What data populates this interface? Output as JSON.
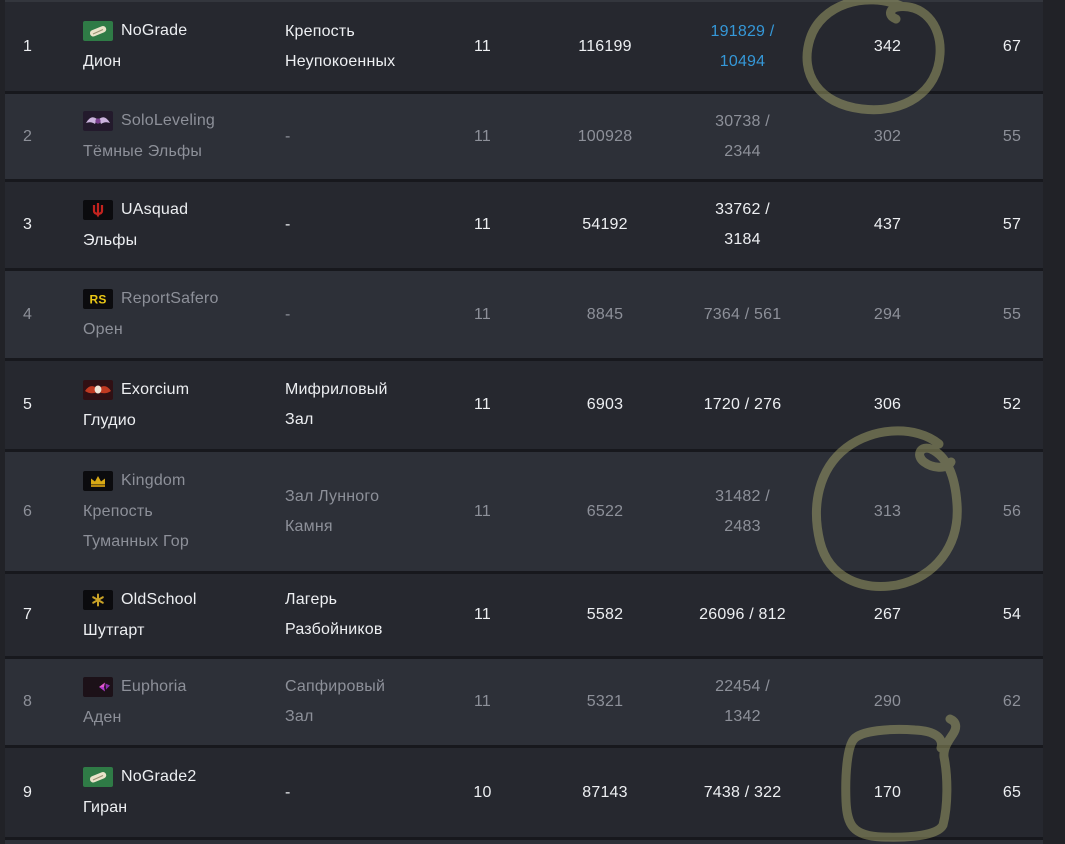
{
  "table": {
    "rows": [
      {
        "rank": "1",
        "clan": "NoGrade",
        "town": "Дион",
        "icon": "nograde-scroll-emblem",
        "hall": "Крепость Неупокоенных",
        "level": "11",
        "points": "116199",
        "siege": "191829 / 10494",
        "siege_is_link": true,
        "members": "342",
        "avg_level": "67",
        "muted": false
      },
      {
        "rank": "2",
        "clan": "SoloLeveling",
        "town": "Тёмные Эльфы",
        "icon": "sololeveling-wings-emblem",
        "hall": "-",
        "level": "11",
        "points": "100928",
        "siege": "30738 / 2344",
        "siege_is_link": false,
        "members": "302",
        "avg_level": "55",
        "muted": true
      },
      {
        "rank": "3",
        "clan": "UAsquad",
        "town": "Эльфы",
        "icon": "uasquad-trident-emblem",
        "hall": "-",
        "level": "11",
        "points": "54192",
        "siege": "33762 / 3184",
        "siege_is_link": false,
        "members": "437",
        "avg_level": "57",
        "muted": false
      },
      {
        "rank": "4",
        "clan": "ReportSafero",
        "town": "Орен",
        "icon": "reportsafero-rs-emblem",
        "icon_text": "RS",
        "hall": "-",
        "level": "11",
        "points": "8845",
        "siege": "7364 / 561",
        "siege_is_link": false,
        "members": "294",
        "avg_level": "55",
        "muted": true
      },
      {
        "rank": "5",
        "clan": "Exorcium",
        "town": "Глудио",
        "icon": "exorcium-bat-emblem",
        "hall": "Мифриловый Зал",
        "level": "11",
        "points": "6903",
        "siege": "1720 / 276",
        "siege_is_link": false,
        "members": "306",
        "avg_level": "52",
        "muted": false
      },
      {
        "rank": "6",
        "clan": "Kingdom",
        "town": "Крепость Туманных Гор",
        "icon": "kingdom-crown-emblem",
        "hall": "Зал Лунного Камня",
        "level": "11",
        "points": "6522",
        "siege": "31482 / 2483",
        "siege_is_link": false,
        "members": "313",
        "avg_level": "56",
        "muted": true
      },
      {
        "rank": "7",
        "clan": "OldSchool",
        "town": "Шутгарт",
        "icon": "oldschool-star-emblem",
        "hall": "Лагерь Разбойников",
        "level": "11",
        "points": "5582",
        "siege": "26096 / 812",
        "siege_is_link": false,
        "members": "267",
        "avg_level": "54",
        "muted": false
      },
      {
        "rank": "8",
        "clan": "Euphoria",
        "town": "Аден",
        "icon": "euphoria-butterfly-emblem",
        "hall": "Сапфировый Зал",
        "level": "11",
        "points": "5321",
        "siege": "22454 / 1342",
        "siege_is_link": false,
        "members": "290",
        "avg_level": "62",
        "muted": true
      },
      {
        "rank": "9",
        "clan": "NoGrade2",
        "town": "Гиран",
        "icon": "nograde-scroll-emblem",
        "hall": "-",
        "level": "10",
        "points": "87143",
        "siege": "7438 / 322",
        "siege_is_link": false,
        "members": "170",
        "avg_level": "65",
        "muted": false
      }
    ]
  },
  "annotations": [
    {
      "shape": "hand-drawn-circle",
      "highlighted_value": "342",
      "row_rank": "1"
    },
    {
      "shape": "hand-drawn-circle",
      "highlighted_value": "313",
      "row_rank": "6"
    },
    {
      "shape": "hand-drawn-square",
      "highlighted_value": "170",
      "row_rank": "9"
    }
  ],
  "colors": {
    "page_background": "#212227",
    "row_dark": "#26282f",
    "row_light": "#2d3038",
    "divider": "#17181d",
    "text_bright": "#edeff2",
    "text_muted": "#8d9099",
    "link_blue": "#3598d8",
    "marker_olive": "#bdbc74"
  }
}
